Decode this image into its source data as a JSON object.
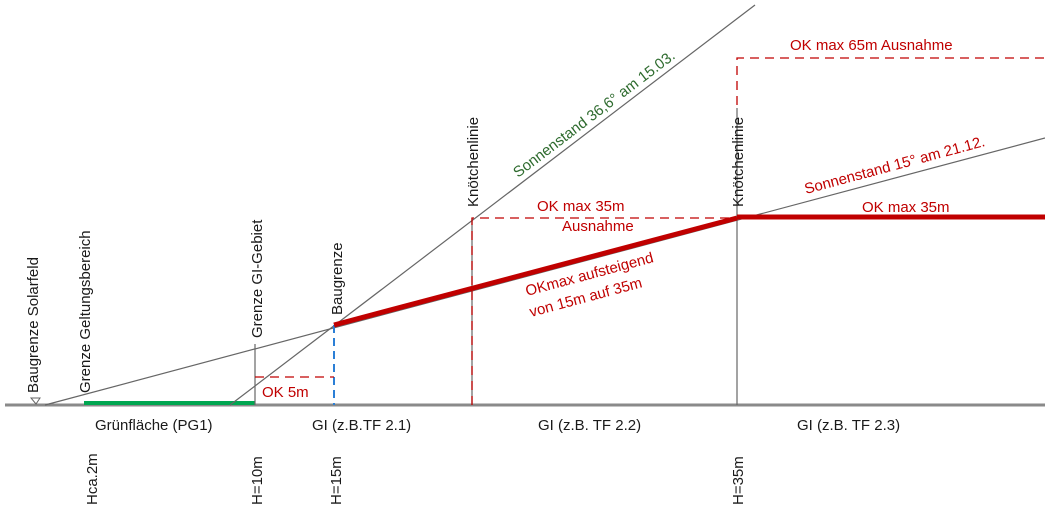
{
  "colors": {
    "red": "#c00000",
    "green_label": "#2e6b2e",
    "green_area": "#00a651",
    "blue_dash": "#2b7fd6",
    "ground": "#8a8a8a",
    "line": "#666666"
  },
  "labels": {
    "baugrenze_solarfeld": "Baugrenze Solarfeld",
    "grenze_geltungsbereich": "Grenze Geltungsbereich",
    "grenze_gi_gebiet": "Grenze GI-Gebiet",
    "baugrenze": "Baugrenze",
    "knoetchenlinie_1": "Knötchenlinie",
    "knoetchenlinie_2": "Knötchenlinie",
    "sonnenstand_36": "Sonnenstand 36,6° am 15.03.",
    "sonnenstand_15": "Sonnenstand 15° am 21.12.",
    "ok_max_65_ausnahme": "OK max 65m Ausnahme",
    "ok_max_35": "OK max 35m",
    "ausnahme": "Ausnahme",
    "ok_max_35_right": "OK max 35m",
    "okmax_aufsteigend_line1": "OKmax aufsteigend",
    "okmax_aufsteigend_line2": "von 15m auf 35m",
    "ok_5m": "OK 5m"
  },
  "zones": {
    "gruenflaeche": "Grünfläche (PG1)",
    "gi_tf21": "GI (z.B.TF 2.1)",
    "gi_tf22": "GI (z.B. TF 2.2)",
    "gi_tf23": "GI (z.B. TF 2.3)"
  },
  "heights": {
    "h_ca2": "Hca.2m",
    "h10": "H=10m",
    "h15": "H=15m",
    "h35": "H=35m"
  }
}
